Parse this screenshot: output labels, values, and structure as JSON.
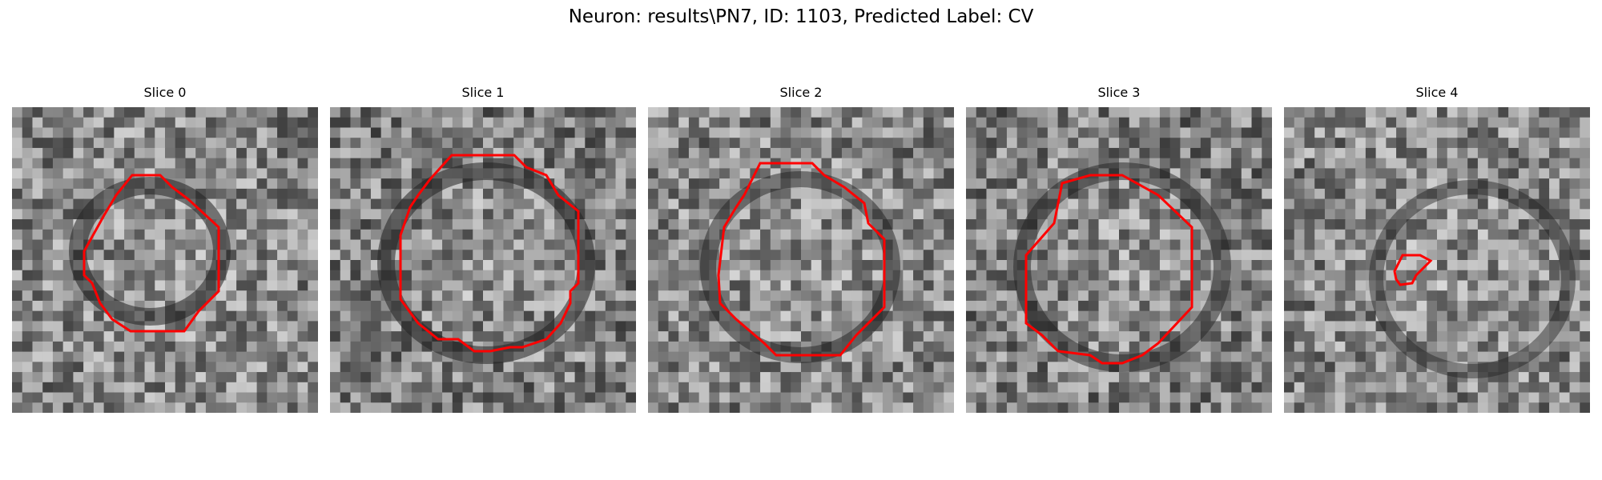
{
  "figure": {
    "title": "Neuron: results\\PN7, ID: 1103, Predicted Label: CV"
  },
  "panels": [
    {
      "title": "Slice 0"
    },
    {
      "title": "Slice 1"
    },
    {
      "title": "Slice 2"
    },
    {
      "title": "Slice 3"
    },
    {
      "title": "Slice 4"
    }
  ],
  "colors": {
    "contour": "#ff0000",
    "background": "#ffffff"
  }
}
